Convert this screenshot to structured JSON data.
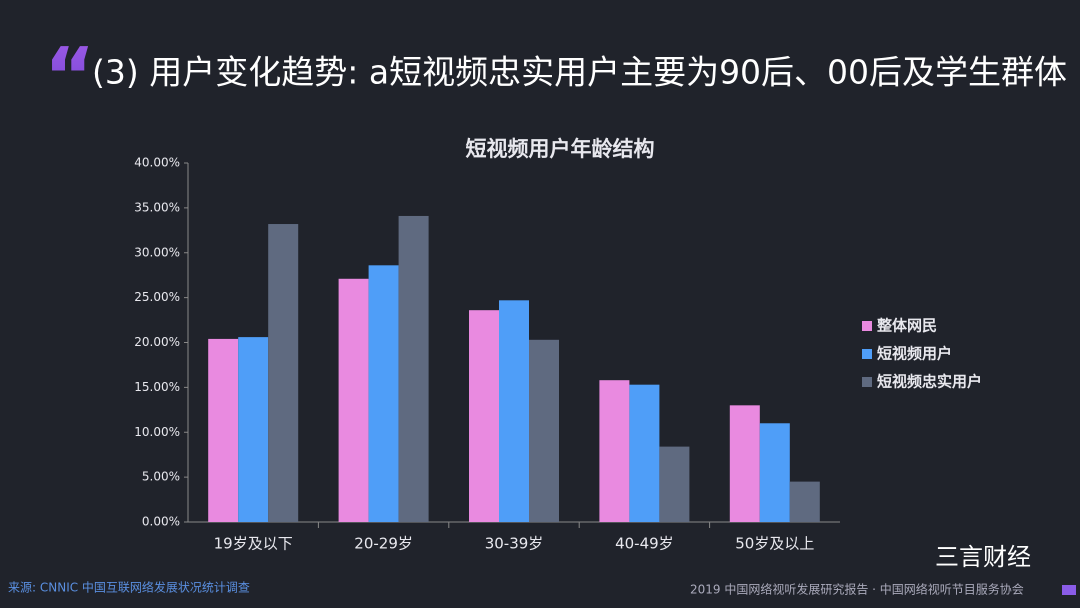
{
  "slide_title": "(3) 用户变化趋势: a短视频忠实用户主要为90后、00后及学生群体",
  "source": "来源: CNNIC 中国互联网络发展状况统计调查",
  "footer": "2019 中国网络视听发展研究报告 · 中国网络视听节目服务协会",
  "watermark": "三言财经",
  "chart_data": {
    "type": "bar",
    "title": "短视频用户年龄结构",
    "categories": [
      "19岁及以下",
      "20-29岁",
      "30-39岁",
      "40-49岁",
      "50岁及以上"
    ],
    "series": [
      {
        "name": "整体网民",
        "color": "#e98ae0",
        "values": [
          20.4,
          27.1,
          23.6,
          15.8,
          13.0
        ]
      },
      {
        "name": "短视频用户",
        "color": "#4f9ef8",
        "values": [
          20.6,
          28.6,
          24.7,
          15.3,
          11.0
        ]
      },
      {
        "name": "短视频忠实用户",
        "color": "#5f6a80",
        "values": [
          33.2,
          34.1,
          20.3,
          8.4,
          4.5
        ]
      }
    ],
    "ylim": [
      0,
      40
    ],
    "yticks": [
      {
        "value": 0,
        "label": "0.00%"
      },
      {
        "value": 5,
        "label": "5.00%"
      },
      {
        "value": 10,
        "label": "10.00%"
      },
      {
        "value": 15,
        "label": "15.00%"
      },
      {
        "value": 20,
        "label": "20.00%"
      },
      {
        "value": 25,
        "label": "25.00%"
      },
      {
        "value": 30,
        "label": "30.00%"
      },
      {
        "value": 35,
        "label": "35.00%"
      },
      {
        "value": 40,
        "label": "40.00%"
      }
    ],
    "legend": "right"
  }
}
